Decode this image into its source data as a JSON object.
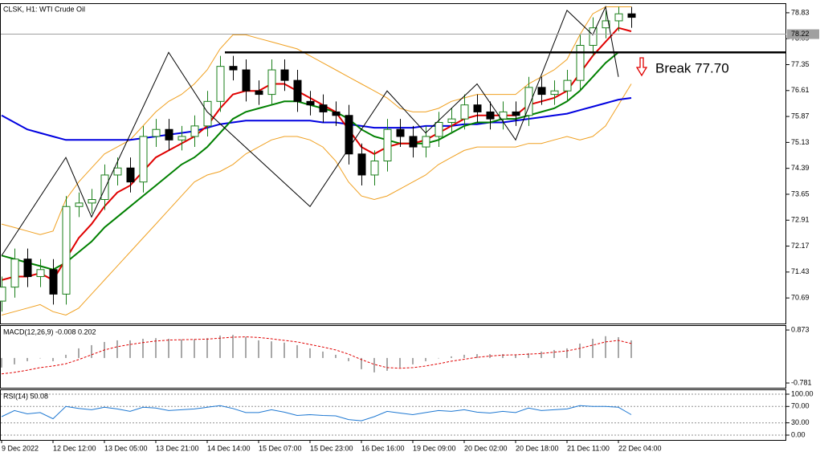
{
  "chart_data": [
    {
      "type": "candlestick",
      "title": "CLSK, H1:  WTI Crude Oil",
      "categories": [
        "9 Dec 2022",
        null,
        null,
        null,
        "12 Dec 12:00",
        null,
        null,
        null,
        "13 Dec 05:00",
        null,
        null,
        null,
        "13 Dec 21:00",
        null,
        null,
        null,
        "14 Dec 14:00",
        null,
        null,
        null,
        "15 Dec 07:00",
        null,
        null,
        null,
        "15 Dec 23:00",
        null,
        null,
        null,
        "16 Dec 16:00",
        null,
        null,
        null,
        "19 Dec 09:00",
        null,
        null,
        null,
        "20 Dec 02:00",
        null,
        null,
        null,
        "20 Dec 18:00",
        null,
        null,
        null,
        "21 Dec 11:00",
        null,
        null,
        null,
        "22 Dec 04:00",
        null
      ],
      "open": [
        70.6,
        71.0,
        71.8,
        71.3,
        71.5,
        70.8,
        73.3,
        73.4,
        73.5,
        74.2,
        74.4,
        74.0,
        75.3,
        75.5,
        75.2,
        75.3,
        75.6,
        76.3,
        77.3,
        77.2,
        76.6,
        76.5,
        77.2,
        76.9,
        76.3,
        76.2,
        76.0,
        75.9,
        74.8,
        74.2,
        74.6,
        75.5,
        75.3,
        75.0,
        75.3,
        75.7,
        75.8,
        76.2,
        76.0,
        75.8,
        76.0,
        75.9,
        76.7,
        76.5,
        76.6,
        76.9,
        77.9,
        78.4,
        78.6,
        78.8
      ],
      "high": [
        71.3,
        72.1,
        72.1,
        71.8,
        71.8,
        73.6,
        73.7,
        73.8,
        74.5,
        74.7,
        74.7,
        75.6,
        75.8,
        75.8,
        75.6,
        75.9,
        76.6,
        77.6,
        77.6,
        77.5,
        76.9,
        77.5,
        77.5,
        77.2,
        76.6,
        76.5,
        76.3,
        76.2,
        75.1,
        74.9,
        75.8,
        75.8,
        75.6,
        75.6,
        76.0,
        76.1,
        76.5,
        76.5,
        76.3,
        76.3,
        76.3,
        77.0,
        77.0,
        76.9,
        77.2,
        78.2,
        78.7,
        78.9,
        79.0,
        79.0
      ],
      "low": [
        70.3,
        70.7,
        71.0,
        71.0,
        70.5,
        70.5,
        73.0,
        73.1,
        73.2,
        73.9,
        73.7,
        73.7,
        75.0,
        74.9,
        74.9,
        75.0,
        75.3,
        76.0,
        76.9,
        76.3,
        76.2,
        76.2,
        76.6,
        76.0,
        75.9,
        75.7,
        75.6,
        74.5,
        73.9,
        73.9,
        74.3,
        75.0,
        74.7,
        74.7,
        75.0,
        75.4,
        75.5,
        75.7,
        75.5,
        75.5,
        75.6,
        75.6,
        76.2,
        76.2,
        76.3,
        76.6,
        77.6,
        78.1,
        78.3,
        78.4
      ],
      "close": [
        71.0,
        71.8,
        71.3,
        71.5,
        70.8,
        73.3,
        73.4,
        73.5,
        74.2,
        74.4,
        74.0,
        75.3,
        75.5,
        75.2,
        75.3,
        75.6,
        76.3,
        77.3,
        77.2,
        76.6,
        76.5,
        77.2,
        76.9,
        76.3,
        76.2,
        76.0,
        75.9,
        74.8,
        74.2,
        74.6,
        75.5,
        75.3,
        75.0,
        75.3,
        75.7,
        75.8,
        76.2,
        76.0,
        75.8,
        76.0,
        75.9,
        76.7,
        76.5,
        76.6,
        76.9,
        77.9,
        78.4,
        78.6,
        78.8,
        78.7
      ],
      "bull_color": "#1a7f1a",
      "bear_color": "#000000",
      "series": [
        {
          "color": "#f0a020",
          "values": [
            72.8,
            72.7,
            72.6,
            72.5,
            72.6,
            73.5,
            74.0,
            74.4,
            74.8,
            75.0,
            75.2,
            75.6,
            76.0,
            76.3,
            76.5,
            76.8,
            77.2,
            77.8,
            78.2,
            78.2,
            78.1,
            78.0,
            77.9,
            77.8,
            77.6,
            77.4,
            77.2,
            77.0,
            76.8,
            76.6,
            76.4,
            76.1,
            76.0,
            76.0,
            76.1,
            76.3,
            76.4,
            76.5,
            76.5,
            76.5,
            76.5,
            76.8,
            77.0,
            77.2,
            77.5,
            78.2,
            78.8,
            79.0,
            79.0,
            79.0
          ]
        },
        {
          "color": "#f0a020",
          "values": [
            70.2,
            70.3,
            70.4,
            70.5,
            70.3,
            70.2,
            70.4,
            70.8,
            71.2,
            71.6,
            72.0,
            72.4,
            72.8,
            73.2,
            73.6,
            74.0,
            74.2,
            74.3,
            74.5,
            74.8,
            75.0,
            75.2,
            75.3,
            75.3,
            75.2,
            75.0,
            74.6,
            74.0,
            73.6,
            73.5,
            73.6,
            73.8,
            74.0,
            74.2,
            74.5,
            74.7,
            74.9,
            75.0,
            75.0,
            75.0,
            75.0,
            75.1,
            75.1,
            75.2,
            75.3,
            75.2,
            75.3,
            75.6,
            76.2,
            76.8
          ]
        },
        {
          "color": "#0000e0",
          "values": [
            75.9,
            75.7,
            75.5,
            75.4,
            75.3,
            75.2,
            75.2,
            75.2,
            75.2,
            75.2,
            75.2,
            75.25,
            75.3,
            75.35,
            75.4,
            75.45,
            75.55,
            75.65,
            75.7,
            75.75,
            75.75,
            75.75,
            75.75,
            75.75,
            75.75,
            75.7,
            75.7,
            75.65,
            75.6,
            75.55,
            75.55,
            75.55,
            75.55,
            75.6,
            75.6,
            75.6,
            75.65,
            75.65,
            75.7,
            75.7,
            75.75,
            75.8,
            75.85,
            75.9,
            75.95,
            76.05,
            76.15,
            76.25,
            76.35,
            76.4
          ]
        },
        {
          "color": "#008000",
          "values": [
            71.9,
            71.8,
            71.7,
            71.6,
            71.5,
            71.7,
            72.0,
            72.3,
            72.7,
            73.0,
            73.3,
            73.6,
            73.9,
            74.2,
            74.5,
            74.7,
            75.0,
            75.4,
            75.8,
            76.0,
            76.1,
            76.2,
            76.3,
            76.3,
            76.2,
            76.1,
            76.0,
            75.8,
            75.5,
            75.3,
            75.2,
            75.1,
            75.1,
            75.1,
            75.2,
            75.4,
            75.6,
            75.7,
            75.7,
            75.8,
            75.8,
            75.9,
            76.0,
            76.1,
            76.3,
            76.6,
            77.0,
            77.4,
            77.7,
            77.7
          ]
        },
        {
          "color": "#e00000",
          "values": [
            71.2,
            71.3,
            71.3,
            71.4,
            71.2,
            71.8,
            72.4,
            72.8,
            73.3,
            73.7,
            73.9,
            74.3,
            74.7,
            74.9,
            75.1,
            75.3,
            75.6,
            76.1,
            76.5,
            76.6,
            76.6,
            76.8,
            76.8,
            76.6,
            76.4,
            76.2,
            76.0,
            75.5,
            75.0,
            74.8,
            75.0,
            75.1,
            75.1,
            75.2,
            75.4,
            75.6,
            75.8,
            75.9,
            75.9,
            75.9,
            75.9,
            76.2,
            76.3,
            76.4,
            76.6,
            77.1,
            77.6,
            78.0,
            78.4,
            78.3
          ]
        }
      ],
      "zigzag": {
        "color": "#000000",
        "x": [
          0,
          5,
          7,
          13,
          16,
          24,
          30,
          33,
          37,
          40,
          44,
          46,
          47,
          48
        ],
        "values": [
          71.9,
          74.7,
          73.0,
          77.7,
          76.0,
          73.3,
          76.6,
          75.4,
          76.8,
          75.2,
          78.9,
          78.2,
          79.0,
          77.0
        ]
      },
      "hline": 77.7,
      "annotation": "Break 77.70",
      "annotation_color": "#e00000",
      "last_price": 78.22,
      "ylim": [
        69.96,
        79.08
      ],
      "yticks": [
        70.69,
        71.43,
        72.17,
        72.91,
        73.65,
        74.39,
        75.13,
        75.87,
        76.61,
        77.35,
        78.09,
        78.83
      ]
    },
    {
      "type": "macd",
      "title": "MACD(12,26,9) -0.008 0.202",
      "histogram": {
        "color": "#a8a8a8",
        "values": [
          -0.3,
          -0.2,
          -0.1,
          0.0,
          -0.1,
          0.1,
          0.3,
          0.4,
          0.5,
          0.55,
          0.55,
          0.6,
          0.62,
          0.6,
          0.58,
          0.58,
          0.62,
          0.7,
          0.72,
          0.66,
          0.55,
          0.52,
          0.48,
          0.4,
          0.3,
          0.2,
          0.1,
          -0.1,
          -0.35,
          -0.45,
          -0.4,
          -0.3,
          -0.2,
          -0.1,
          0.0,
          0.05,
          0.1,
          0.12,
          0.12,
          0.12,
          0.1,
          0.15,
          0.2,
          0.25,
          0.3,
          0.45,
          0.6,
          0.68,
          0.65,
          0.55
        ]
      },
      "signal": {
        "color": "#e00000",
        "values": [
          -0.5,
          -0.45,
          -0.38,
          -0.3,
          -0.25,
          -0.18,
          -0.05,
          0.1,
          0.25,
          0.35,
          0.42,
          0.48,
          0.53,
          0.56,
          0.57,
          0.58,
          0.59,
          0.62,
          0.65,
          0.66,
          0.64,
          0.6,
          0.55,
          0.5,
          0.42,
          0.34,
          0.25,
          0.12,
          -0.05,
          -0.2,
          -0.3,
          -0.32,
          -0.3,
          -0.25,
          -0.18,
          -0.1,
          -0.04,
          0.02,
          0.06,
          0.09,
          0.1,
          0.12,
          0.14,
          0.18,
          0.22,
          0.3,
          0.4,
          0.5,
          0.55,
          0.45
        ]
      },
      "ylim": [
        -0.93,
        1.0
      ],
      "yticks": [
        0.873,
        -0.781
      ]
    },
    {
      "type": "line",
      "title": "RSI(14) 50.08",
      "color": "#1e78d2",
      "values": [
        45,
        60,
        52,
        55,
        40,
        70,
        65,
        62,
        68,
        64,
        58,
        68,
        66,
        60,
        62,
        64,
        68,
        72,
        65,
        55,
        55,
        62,
        56,
        48,
        50,
        48,
        47,
        38,
        35,
        45,
        58,
        54,
        50,
        55,
        60,
        58,
        62,
        56,
        54,
        58,
        55,
        66,
        60,
        62,
        64,
        72,
        70,
        70,
        68,
        50
      ],
      "ylim": [
        -11.8,
        109.8
      ],
      "grid": true,
      "yticks": [
        {
          "value": 100,
          "label": "100.00"
        },
        {
          "value": 70,
          "label": "70.00"
        },
        {
          "value": 30,
          "label": "30.00"
        },
        {
          "value": 0,
          "label": "0.00"
        }
      ]
    }
  ]
}
